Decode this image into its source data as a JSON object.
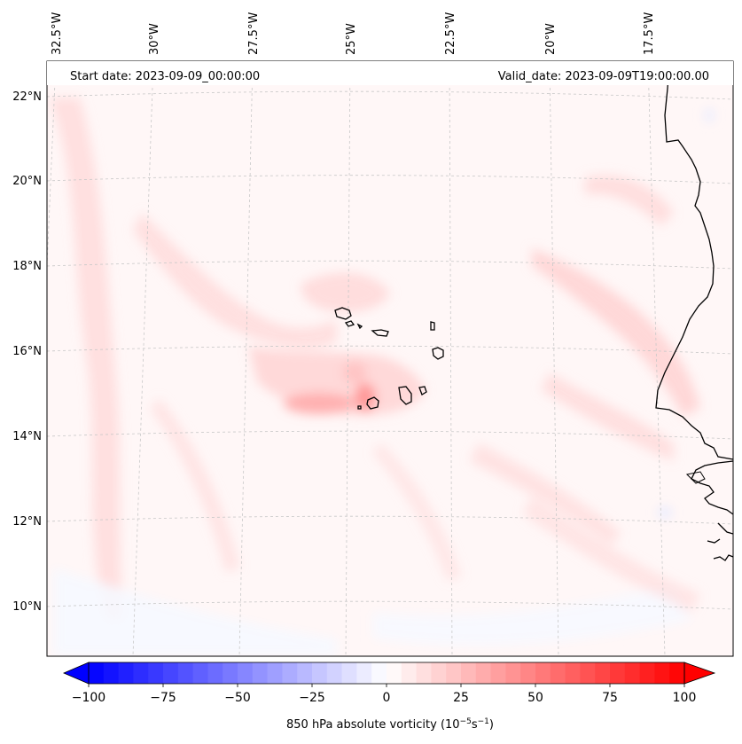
{
  "map": {
    "annotation_left": "Start date: 2023-09-09_00:00:00",
    "annotation_right": "Valid_date: 2023-09-09T19:00:00.00",
    "lon_labels": [
      "32.5°W",
      "30°W",
      "27.5°W",
      "25°W",
      "22.5°W",
      "20°W",
      "17.5°W"
    ],
    "lat_labels": [
      "22°N",
      "20°N",
      "18°N",
      "16°N",
      "14°N",
      "12°N",
      "10°N"
    ],
    "field_name": "850 hPa absolute vorticity",
    "colors": {
      "land_outline": "#000000",
      "gridline": "#c8c8c8",
      "background": "#fff7f7"
    }
  },
  "colorbar": {
    "ticks": [
      "−100",
      "−75",
      "−50",
      "−25",
      "0",
      "25",
      "50",
      "75",
      "100"
    ],
    "tick_values": [
      -100,
      -75,
      -50,
      -25,
      0,
      25,
      50,
      75,
      100
    ],
    "label_main": "850 hPa absolute vorticity (10",
    "label_exp1": "−5",
    "label_mid": "s",
    "label_exp2": "−1",
    "label_end": ")",
    "range": [
      -100,
      100
    ],
    "cmap": "bwr",
    "colors": {
      "low": "#0000ff",
      "mid": "#ffffff",
      "high": "#ff0000"
    }
  }
}
